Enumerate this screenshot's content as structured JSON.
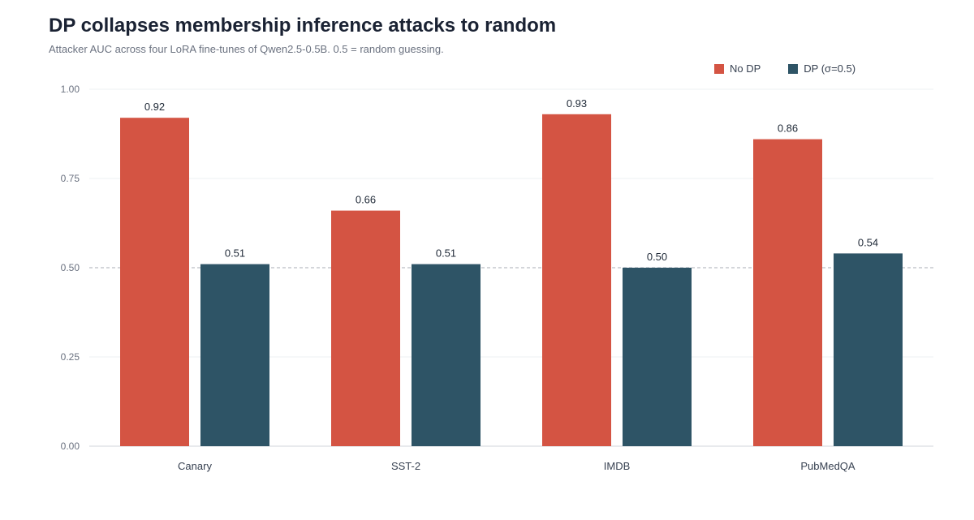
{
  "chart_data": {
    "type": "bar",
    "title": "DP collapses membership inference attacks to random",
    "subtitle": "Attacker AUC across four LoRA fine-tunes of Qwen2.5-0.5B. 0.5 = random guessing.",
    "categories": [
      "Canary",
      "SST-2",
      "IMDB",
      "PubMedQA"
    ],
    "series": [
      {
        "name": "No DP",
        "values": [
          0.92,
          0.66,
          0.93,
          0.86
        ],
        "labels": [
          "0.92",
          "0.66",
          "0.93",
          "0.86"
        ],
        "color": "#d45443"
      },
      {
        "name": "DP (σ=0.5)",
        "values": [
          0.51,
          0.51,
          0.5,
          0.54
        ],
        "labels": [
          "0.51",
          "0.51",
          "0.50",
          "0.54"
        ],
        "color": "#2e5466"
      }
    ],
    "yticks": [
      "0.00",
      "0.25",
      "0.50",
      "0.75",
      "1.00"
    ],
    "ylim": [
      0,
      1
    ],
    "reference_line": 0.5,
    "grid": true,
    "legend_position": "top-right"
  }
}
